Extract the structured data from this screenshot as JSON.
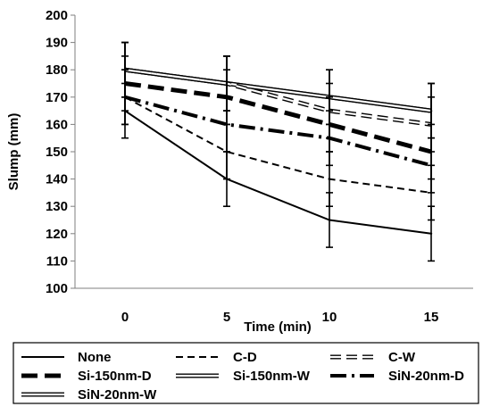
{
  "chart_data": {
    "type": "line",
    "title": "",
    "xlabel": "Time (min)",
    "ylabel": "Slump (mm)",
    "x": [
      0,
      5,
      10,
      15
    ],
    "x_ticks": [
      "0",
      "5",
      "10",
      "15"
    ],
    "ylim": [
      100,
      200
    ],
    "y_ticks": [
      "100",
      "110",
      "120",
      "130",
      "140",
      "150",
      "160",
      "170",
      "180",
      "190",
      "200"
    ],
    "grid": false,
    "legend_position": "bottom",
    "series": [
      {
        "name": "None",
        "style": "solid",
        "color": "#000000",
        "values": [
          165,
          140,
          125,
          120
        ],
        "error": [
          10,
          10,
          10,
          10
        ]
      },
      {
        "name": "C-D",
        "style": "dashed",
        "color": "#000000",
        "values": [
          170,
          150,
          140,
          135
        ]
      },
      {
        "name": "C-W",
        "style": "dashed-double",
        "color": "#000000",
        "values": [
          180,
          175,
          165,
          160
        ]
      },
      {
        "name": "Si-150nm-D",
        "style": "heavy-dashed",
        "color": "#000000",
        "values": [
          175,
          170,
          160,
          150
        ]
      },
      {
        "name": "Si-150nm-W",
        "style": "double",
        "color": "#000000",
        "values": [
          180,
          175,
          170,
          165
        ]
      },
      {
        "name": "SiN-20nm-D",
        "style": "dash-dot",
        "color": "#000000",
        "values": [
          170,
          160,
          155,
          145
        ]
      },
      {
        "name": "SiN-20nm-W",
        "style": "double",
        "color": "#000000",
        "values": [
          180,
          175,
          170,
          165
        ]
      }
    ]
  }
}
